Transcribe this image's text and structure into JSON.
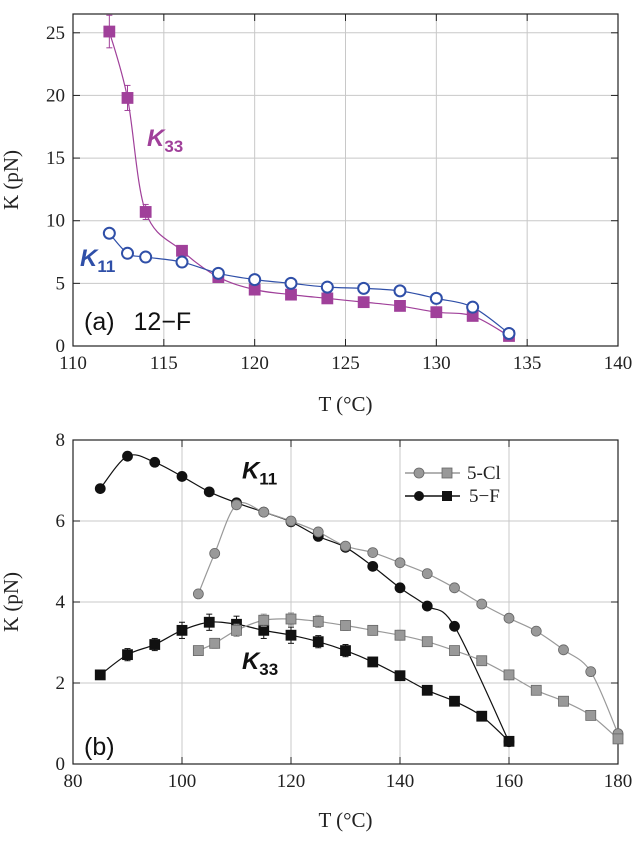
{
  "colors": {
    "purple": "#8b2f8a",
    "purple_fill": "#a0409a",
    "blue": "#2f4fa8",
    "black": "#111111",
    "gray": "#999999",
    "gray_edge": "#666666",
    "grid": "#c8c8c8"
  },
  "chart_data": [
    {
      "panel": "(a)",
      "panel_text": "12−F",
      "type": "scatter",
      "xlabel": "T (°C)",
      "ylabel": "K (pN)",
      "xlim": [
        110,
        140
      ],
      "ylim": [
        0,
        26.5
      ],
      "xticks": [
        110,
        115,
        120,
        125,
        130,
        135,
        140
      ],
      "yticks": [
        0,
        5,
        10,
        15,
        20,
        25
      ],
      "xtick_labels": [
        "110",
        "115",
        "120",
        "125",
        "130",
        "135",
        "140"
      ],
      "ytick_labels": [
        "0",
        "5",
        "10",
        "15",
        "20",
        "25"
      ],
      "grid": true,
      "series": [
        {
          "name": "K33",
          "label_main": "K",
          "label_sub": "33",
          "marker": "square-filled",
          "color": "#a0409a",
          "x": [
            112,
            113,
            114,
            116,
            118,
            120,
            122,
            124,
            126,
            128,
            130,
            132,
            134
          ],
          "y": [
            25.1,
            19.8,
            10.7,
            7.6,
            5.5,
            4.5,
            4.1,
            3.8,
            3.5,
            3.2,
            2.7,
            2.4,
            0.8
          ],
          "err": [
            1.3,
            1.0,
            0.6,
            0.3,
            0.3,
            0.2,
            0.4,
            0.3,
            0.2,
            0.2,
            0.2,
            0.2,
            0.2
          ]
        },
        {
          "name": "K11",
          "label_main": "K",
          "label_sub": "11",
          "marker": "circle-open",
          "color": "#2f4fa8",
          "x": [
            112,
            113,
            114,
            116,
            118,
            120,
            122,
            124,
            126,
            128,
            130,
            132,
            134
          ],
          "y": [
            9.0,
            7.4,
            7.1,
            6.7,
            5.8,
            5.3,
            5.0,
            4.7,
            4.6,
            4.4,
            3.8,
            3.1,
            1.0
          ],
          "err": []
        }
      ]
    },
    {
      "panel": "(b)",
      "type": "scatter",
      "xlabel": "T (°C)",
      "ylabel": "K (pN)",
      "xlim": [
        80,
        180
      ],
      "ylim": [
        0,
        8
      ],
      "xticks": [
        80,
        100,
        120,
        140,
        160,
        180
      ],
      "yticks": [
        0,
        2,
        4,
        6,
        8
      ],
      "xtick_labels": [
        "80",
        "100",
        "120",
        "140",
        "160",
        "180"
      ],
      "ytick_labels": [
        "0",
        "2",
        "4",
        "6",
        "8"
      ],
      "grid": true,
      "legend": {
        "placement": "top-right",
        "entries": [
          {
            "label": "5-Cl",
            "color": "#999999"
          },
          {
            "label": "5−F",
            "color": "#111111"
          }
        ]
      },
      "annotations": [
        {
          "main": "K",
          "sub": "11",
          "x": 111,
          "y": 7.05
        },
        {
          "main": "K",
          "sub": "33",
          "x": 111,
          "y": 2.35
        }
      ],
      "series": [
        {
          "name": "5-F K11",
          "marker": "circle-filled",
          "color": "#111111",
          "x": [
            85,
            90,
            95,
            100,
            105,
            110,
            115,
            120,
            125,
            130,
            135,
            140,
            145,
            150,
            160
          ],
          "y": [
            6.8,
            7.6,
            7.45,
            7.1,
            6.72,
            6.45,
            6.22,
            5.98,
            5.62,
            5.35,
            4.88,
            4.35,
            3.9,
            3.4,
            0.55
          ],
          "err": []
        },
        {
          "name": "5-F K33",
          "marker": "square-filled",
          "color": "#111111",
          "x": [
            85,
            90,
            95,
            100,
            105,
            110,
            115,
            120,
            125,
            130,
            135,
            140,
            145,
            150,
            155,
            160
          ],
          "y": [
            2.2,
            2.7,
            2.95,
            3.3,
            3.5,
            3.45,
            3.3,
            3.18,
            3.02,
            2.8,
            2.52,
            2.18,
            1.82,
            1.55,
            1.18,
            0.56
          ],
          "err": [
            0.1,
            0.15,
            0.15,
            0.2,
            0.2,
            0.2,
            0.2,
            0.2,
            0.15,
            0.15,
            0.1,
            0.1,
            0.08,
            0.08,
            0.05,
            0.05
          ]
        },
        {
          "name": "5-Cl K11",
          "marker": "circle-filled",
          "color": "#999999",
          "x": [
            103,
            106,
            110,
            115,
            120,
            125,
            130,
            135,
            140,
            145,
            150,
            155,
            160,
            165,
            170,
            175,
            180
          ],
          "y": [
            4.2,
            5.2,
            6.4,
            6.22,
            6.0,
            5.73,
            5.38,
            5.22,
            4.97,
            4.7,
            4.35,
            3.95,
            3.6,
            3.28,
            2.82,
            2.28,
            0.75
          ],
          "err": []
        },
        {
          "name": "5-Cl K33",
          "marker": "square-filled",
          "color": "#999999",
          "x": [
            103,
            106,
            110,
            115,
            120,
            125,
            130,
            135,
            140,
            145,
            150,
            155,
            160,
            165,
            170,
            175,
            180
          ],
          "y": [
            2.8,
            2.98,
            3.3,
            3.55,
            3.58,
            3.52,
            3.42,
            3.3,
            3.18,
            3.02,
            2.8,
            2.55,
            2.2,
            1.82,
            1.55,
            1.2,
            0.62
          ],
          "err": [
            0.1,
            0.12,
            0.15,
            0.15,
            0.15,
            0.15,
            0.12,
            0.12,
            0.12,
            0.1,
            0.1,
            0.1,
            0.08,
            0.08,
            0.06,
            0.06,
            0.05
          ]
        }
      ]
    }
  ]
}
